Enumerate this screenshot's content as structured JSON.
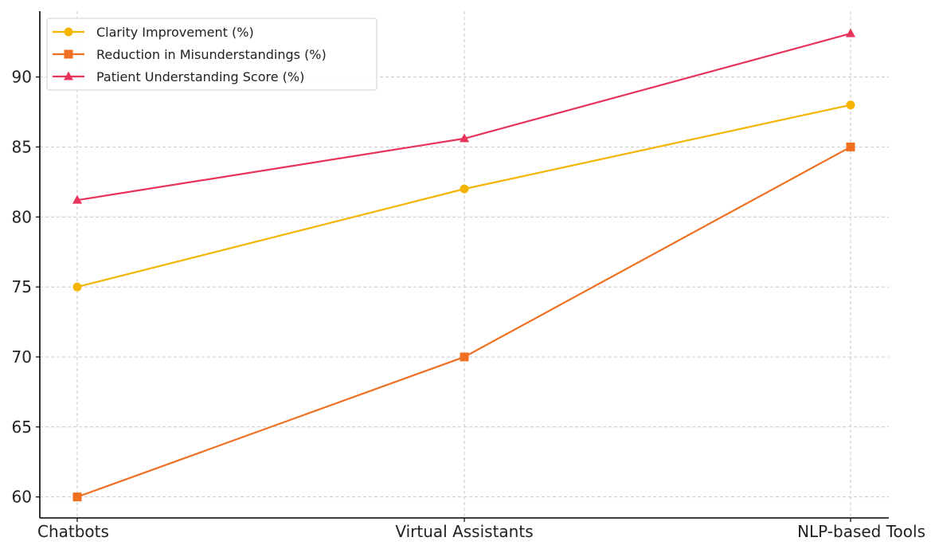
{
  "chart_data": {
    "type": "line",
    "categories": [
      "Chatbots",
      "Virtual Assistants",
      "NLP-based Tools"
    ],
    "series": [
      {
        "name": "Clarity Improvement (%)",
        "values": [
          75,
          82,
          88
        ],
        "color": "#F5B400",
        "marker": "circle"
      },
      {
        "name": "Reduction in Misunderstandings (%)",
        "values": [
          60,
          70,
          85
        ],
        "color": "#F07022",
        "marker": "square"
      },
      {
        "name": "Patient Understanding Score (%)",
        "values": [
          81.2,
          85.6,
          93.1
        ],
        "color": "#E8335A",
        "marker": "triangle"
      }
    ],
    "yticks": [
      60,
      65,
      70,
      75,
      80,
      85,
      90
    ],
    "ylim": [
      58.5,
      94.7
    ],
    "grid": true,
    "legend_position": "top-left"
  }
}
